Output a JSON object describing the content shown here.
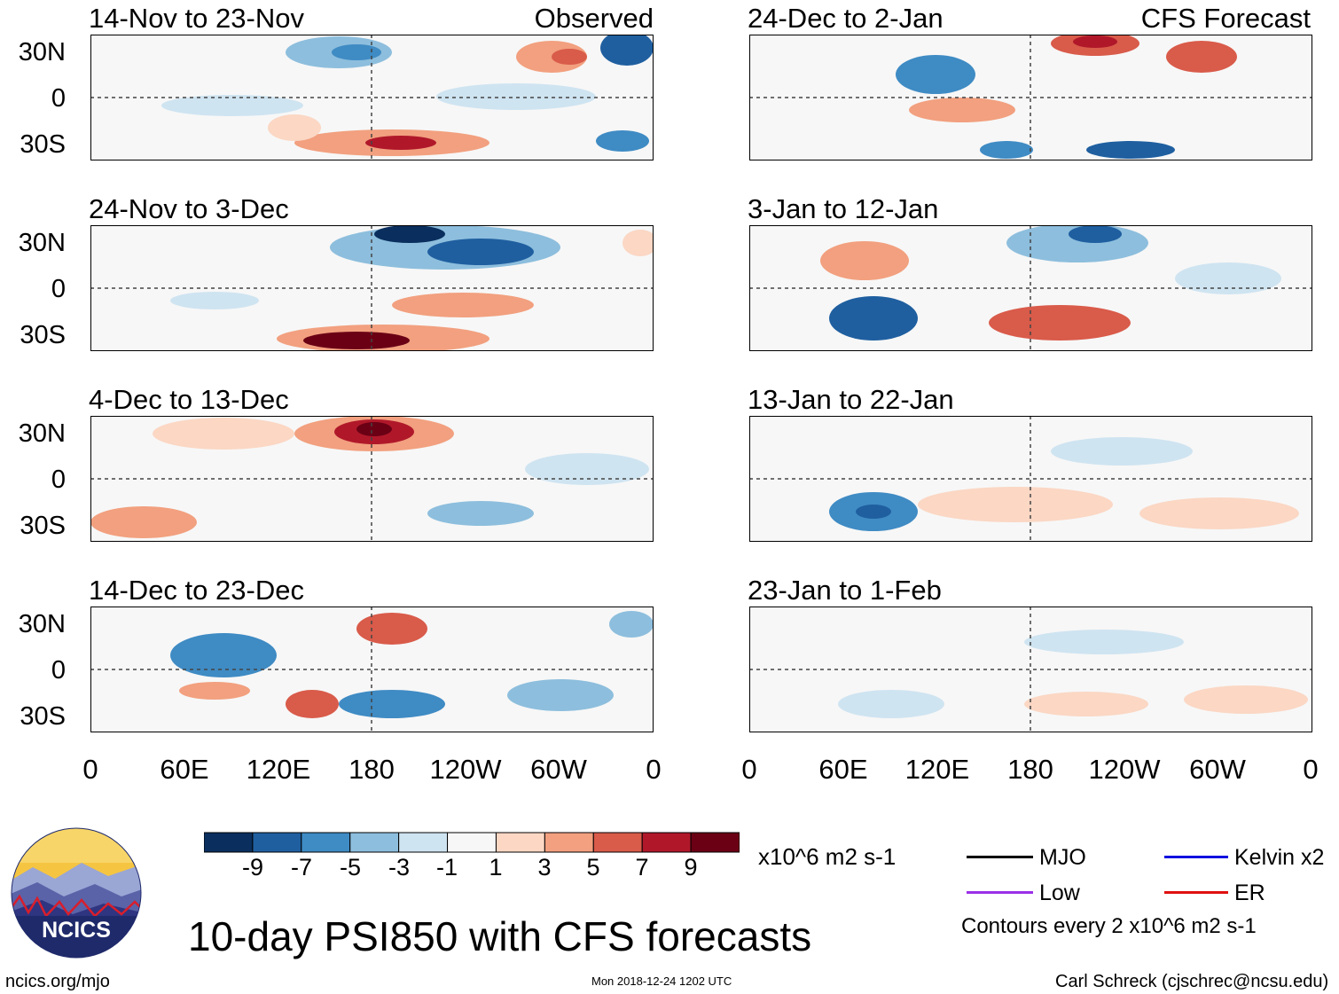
{
  "panels_left": [
    {
      "title": "14-Nov to 23-Nov",
      "tag": "Observed"
    },
    {
      "title": "24-Nov to 3-Dec",
      "tag": ""
    },
    {
      "title": "4-Dec to 13-Dec",
      "tag": ""
    },
    {
      "title": "14-Dec to 23-Dec",
      "tag": ""
    }
  ],
  "panels_right": [
    {
      "title": "24-Dec to 2-Jan",
      "tag": "CFS Forecast"
    },
    {
      "title": "3-Jan to 12-Jan",
      "tag": ""
    },
    {
      "title": "13-Jan to 22-Jan",
      "tag": ""
    },
    {
      "title": "23-Jan to 1-Feb",
      "tag": ""
    }
  ],
  "y_ticks": [
    "30N",
    "0",
    "30S"
  ],
  "x_ticks": [
    "0",
    "60E",
    "120E",
    "180",
    "120W",
    "60W",
    "0"
  ],
  "colorbar": {
    "colors": [
      "#0a2f5e",
      "#1f5fa0",
      "#3f8bc4",
      "#8dbedd",
      "#cfe4f1",
      "#f7f7f7",
      "#fbd7c4",
      "#f2a07f",
      "#d95b4a",
      "#b0182a",
      "#6b0015"
    ],
    "labels": [
      "-9",
      "-7",
      "-5",
      "-3",
      "-1",
      "1",
      "3",
      "5",
      "7",
      "9"
    ],
    "units": "x10^6 m2 s-1"
  },
  "legend": {
    "mjo": {
      "label": "MJO",
      "color": "#000000"
    },
    "kelvin": {
      "label": "Kelvin x2",
      "color": "#1010e0"
    },
    "low": {
      "label": "Low",
      "color": "#9b30e8"
    },
    "er": {
      "label": "ER",
      "color": "#e01010"
    },
    "contours": "Contours every 2 x10^6 m2 s-1"
  },
  "logo": {
    "text": "NCICS"
  },
  "main_title": "10-day PSI850 with CFS forecasts",
  "footer": {
    "url": "ncics.org/mjo",
    "timestamp": "Mon 2018-12-24 1202 UTC",
    "author": "Carl Schreck (cjschrec@ncsu.edu)"
  }
}
